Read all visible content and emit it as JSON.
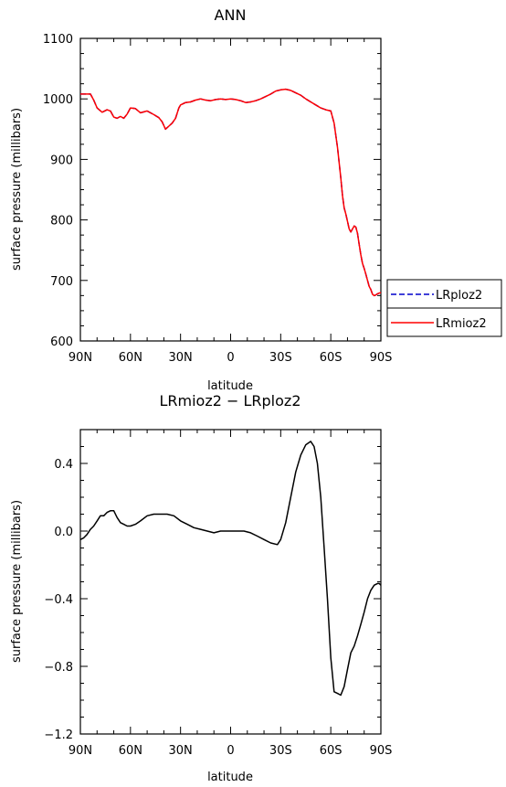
{
  "chart_data": [
    {
      "type": "line",
      "title": "ANN",
      "xlabel": "latitude",
      "ylabel": "surface pressure (millibars)",
      "xlim": [
        90,
        -90
      ],
      "ylim": [
        600,
        1100
      ],
      "x_ticks": [
        90,
        60,
        30,
        0,
        -30,
        -60,
        -90
      ],
      "x_tick_labels": [
        "90N",
        "60N",
        "30N",
        "0",
        "30S",
        "60S",
        "90S"
      ],
      "y_ticks": [
        600,
        700,
        800,
        900,
        1000,
        1100
      ],
      "y_tick_labels": [
        "600",
        "700",
        "800",
        "900",
        "1000",
        "1100"
      ],
      "legend": {
        "position": "right",
        "entries": [
          "LRploz2",
          "LRmioz2"
        ]
      },
      "x": [
        90,
        86,
        84,
        82,
        80,
        77,
        74,
        72,
        70,
        68,
        66,
        64,
        62,
        60,
        57,
        54,
        50,
        46,
        43,
        41,
        39,
        37,
        35,
        33,
        31,
        30,
        27,
        24,
        21,
        18,
        15,
        12,
        9,
        6,
        3,
        0,
        -3,
        -6,
        -9,
        -12,
        -15,
        -18,
        -21,
        -24,
        -27,
        -30,
        -33,
        -36,
        -39,
        -42,
        -45,
        -48,
        -51,
        -54,
        -57,
        -60,
        -62,
        -64,
        -66,
        -67,
        -68,
        -69,
        -70,
        -71,
        -72,
        -73,
        -74,
        -75,
        -76,
        -77,
        -78,
        -79,
        -80,
        -81,
        -82,
        -83,
        -84,
        -85,
        -86,
        -87,
        -88,
        -89,
        -90
      ],
      "series": [
        {
          "name": "LRploz2",
          "color": "#0000cc",
          "dash": "dashed",
          "values": [
            1008,
            1008,
            1008,
            998,
            985,
            978,
            982,
            980,
            970,
            968,
            971,
            968,
            975,
            985,
            984,
            977,
            980,
            974,
            969,
            962,
            950,
            955,
            960,
            968,
            985,
            990,
            994,
            995,
            998,
            1000,
            998,
            997,
            999,
            1000,
            999,
            1000,
            999,
            997,
            994,
            995,
            997,
            1000,
            1004,
            1008,
            1013,
            1015,
            1016,
            1014,
            1010,
            1006,
            1000,
            995,
            990,
            985,
            982,
            980,
            960,
            920,
            870,
            840,
            820,
            810,
            798,
            785,
            780,
            785,
            790,
            788,
            778,
            760,
            742,
            728,
            720,
            710,
            700,
            690,
            685,
            677,
            675,
            676,
            678,
            679,
            680
          ]
        },
        {
          "name": "LRmioz2",
          "color": "#ff0000",
          "dash": "solid",
          "values": [
            1008,
            1008,
            1008,
            998,
            985,
            978,
            982,
            980,
            970,
            968,
            971,
            968,
            975,
            985,
            984,
            977,
            980,
            974,
            969,
            962,
            950,
            955,
            960,
            968,
            985,
            990,
            994,
            995,
            998,
            1000,
            998,
            997,
            999,
            1000,
            999,
            1000,
            999,
            997,
            994,
            995,
            997,
            1000,
            1004,
            1008,
            1013,
            1015,
            1016,
            1014,
            1010,
            1006,
            1000,
            995,
            990,
            985,
            982,
            980,
            960,
            920,
            870,
            840,
            820,
            810,
            798,
            785,
            780,
            785,
            790,
            788,
            778,
            760,
            742,
            728,
            720,
            710,
            700,
            690,
            685,
            677,
            675,
            676,
            678,
            679,
            680
          ]
        }
      ]
    },
    {
      "type": "line",
      "title": "LRmioz2 − LRploz2",
      "xlabel": "latitude",
      "ylabel": "surface pressure (millibars)",
      "xlim": [
        90,
        -90
      ],
      "ylim": [
        -1.2,
        0.6
      ],
      "x_ticks": [
        90,
        60,
        30,
        0,
        -30,
        -60,
        -90
      ],
      "x_tick_labels": [
        "90N",
        "60N",
        "30N",
        "0",
        "30S",
        "60S",
        "90S"
      ],
      "y_ticks": [
        -1.2,
        -0.8,
        -0.4,
        0.0,
        0.4
      ],
      "y_tick_labels": [
        "−1.2",
        "−0.8",
        "−0.4",
        "0.0",
        "0.4"
      ],
      "x": [
        90,
        88,
        86,
        84,
        82,
        80,
        78,
        76,
        74,
        72,
        70,
        68,
        66,
        64,
        62,
        60,
        57,
        54,
        50,
        46,
        42,
        38,
        34,
        30,
        26,
        22,
        18,
        14,
        10,
        6,
        2,
        0,
        -4,
        -8,
        -12,
        -16,
        -20,
        -24,
        -28,
        -30,
        -33,
        -36,
        -39,
        -42,
        -45,
        -48,
        -50,
        -52,
        -54,
        -56,
        -58,
        -60,
        -62,
        -64,
        -66,
        -68,
        -70,
        -72,
        -74,
        -76,
        -78,
        -80,
        -82,
        -84,
        -86,
        -88,
        -89,
        -90
      ],
      "series": [
        {
          "name": "",
          "color": "#000000",
          "dash": "solid",
          "values": [
            -0.05,
            -0.04,
            -0.02,
            0.01,
            0.03,
            0.06,
            0.09,
            0.09,
            0.11,
            0.12,
            0.12,
            0.08,
            0.05,
            0.04,
            0.03,
            0.03,
            0.04,
            0.06,
            0.09,
            0.1,
            0.1,
            0.1,
            0.09,
            0.06,
            0.04,
            0.02,
            0.01,
            0.0,
            -0.01,
            0.0,
            0.0,
            0.0,
            0.0,
            0.0,
            -0.01,
            -0.03,
            -0.05,
            -0.07,
            -0.08,
            -0.05,
            0.05,
            0.2,
            0.35,
            0.45,
            0.51,
            0.53,
            0.5,
            0.4,
            0.2,
            -0.1,
            -0.4,
            -0.75,
            -0.95,
            -0.96,
            -0.97,
            -0.92,
            -0.82,
            -0.72,
            -0.68,
            -0.62,
            -0.55,
            -0.48,
            -0.4,
            -0.35,
            -0.32,
            -0.31,
            -0.31,
            -0.32
          ]
        }
      ]
    }
  ]
}
